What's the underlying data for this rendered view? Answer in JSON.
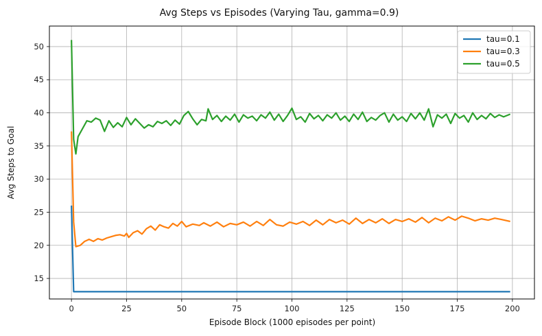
{
  "chart_data": {
    "type": "line",
    "title": "Avg Steps vs Episodes (Varying Tau, gamma=0.9)",
    "xlabel": "Episode Block (1000 episodes per point)",
    "ylabel": "Avg Steps to Goal",
    "xlim": [
      -10,
      210
    ],
    "ylim": [
      11.9,
      53.1
    ],
    "xticks": [
      0,
      25,
      50,
      75,
      100,
      125,
      150,
      175,
      200
    ],
    "yticks": [
      15,
      20,
      25,
      30,
      35,
      40,
      45,
      50
    ],
    "grid": true,
    "legend_position": "top-right",
    "series": [
      {
        "name": "tau=0.1",
        "color": "#1f77b4",
        "points": [
          [
            0,
            26.0
          ],
          [
            1,
            13.0
          ],
          [
            199,
            13.0
          ]
        ]
      },
      {
        "name": "tau=0.3",
        "color": "#ff7f0e",
        "points": [
          [
            0,
            37.2
          ],
          [
            1,
            23.5
          ],
          [
            2,
            19.8
          ],
          [
            4,
            20.0
          ],
          [
            6,
            20.6
          ],
          [
            8,
            20.9
          ],
          [
            10,
            20.6
          ],
          [
            12,
            21.0
          ],
          [
            14,
            20.8
          ],
          [
            16,
            21.1
          ],
          [
            18,
            21.3
          ],
          [
            20,
            21.5
          ],
          [
            22,
            21.6
          ],
          [
            24,
            21.4
          ],
          [
            25,
            21.8
          ],
          [
            26,
            21.2
          ],
          [
            28,
            21.9
          ],
          [
            30,
            22.2
          ],
          [
            32,
            21.7
          ],
          [
            34,
            22.5
          ],
          [
            36,
            22.9
          ],
          [
            38,
            22.3
          ],
          [
            40,
            23.1
          ],
          [
            42,
            22.8
          ],
          [
            44,
            22.6
          ],
          [
            46,
            23.3
          ],
          [
            48,
            22.9
          ],
          [
            50,
            23.6
          ],
          [
            52,
            22.8
          ],
          [
            55,
            23.2
          ],
          [
            58,
            23.0
          ],
          [
            60,
            23.4
          ],
          [
            63,
            22.9
          ],
          [
            66,
            23.5
          ],
          [
            69,
            22.8
          ],
          [
            72,
            23.3
          ],
          [
            75,
            23.1
          ],
          [
            78,
            23.5
          ],
          [
            81,
            22.9
          ],
          [
            84,
            23.6
          ],
          [
            87,
            23.0
          ],
          [
            90,
            23.9
          ],
          [
            93,
            23.1
          ],
          [
            96,
            22.9
          ],
          [
            99,
            23.5
          ],
          [
            102,
            23.2
          ],
          [
            105,
            23.6
          ],
          [
            108,
            23.0
          ],
          [
            111,
            23.8
          ],
          [
            114,
            23.1
          ],
          [
            117,
            23.9
          ],
          [
            120,
            23.4
          ],
          [
            123,
            23.8
          ],
          [
            126,
            23.2
          ],
          [
            129,
            24.1
          ],
          [
            132,
            23.3
          ],
          [
            135,
            23.9
          ],
          [
            138,
            23.4
          ],
          [
            141,
            24.0
          ],
          [
            144,
            23.3
          ],
          [
            147,
            23.9
          ],
          [
            150,
            23.6
          ],
          [
            153,
            24.0
          ],
          [
            156,
            23.5
          ],
          [
            159,
            24.2
          ],
          [
            162,
            23.4
          ],
          [
            165,
            24.1
          ],
          [
            168,
            23.7
          ],
          [
            171,
            24.3
          ],
          [
            174,
            23.8
          ],
          [
            177,
            24.4
          ],
          [
            180,
            24.1
          ],
          [
            183,
            23.7
          ],
          [
            186,
            24.0
          ],
          [
            189,
            23.8
          ],
          [
            192,
            24.1
          ],
          [
            195,
            23.9
          ],
          [
            199,
            23.6
          ]
        ]
      },
      {
        "name": "tau=0.5",
        "color": "#2ca02c",
        "points": [
          [
            0,
            51.0
          ],
          [
            1,
            36.0
          ],
          [
            2,
            33.8
          ],
          [
            3,
            36.4
          ],
          [
            5,
            37.6
          ],
          [
            7,
            38.8
          ],
          [
            9,
            38.6
          ],
          [
            11,
            39.2
          ],
          [
            13,
            38.9
          ],
          [
            15,
            37.2
          ],
          [
            17,
            38.8
          ],
          [
            19,
            37.8
          ],
          [
            21,
            38.5
          ],
          [
            23,
            37.9
          ],
          [
            25,
            39.3
          ],
          [
            27,
            38.2
          ],
          [
            29,
            39.1
          ],
          [
            31,
            38.4
          ],
          [
            33,
            37.7
          ],
          [
            35,
            38.2
          ],
          [
            37,
            37.9
          ],
          [
            39,
            38.7
          ],
          [
            41,
            38.4
          ],
          [
            43,
            38.8
          ],
          [
            45,
            38.1
          ],
          [
            47,
            38.9
          ],
          [
            49,
            38.3
          ],
          [
            51,
            39.6
          ],
          [
            53,
            40.2
          ],
          [
            55,
            39.1
          ],
          [
            57,
            38.2
          ],
          [
            59,
            39.0
          ],
          [
            61,
            38.8
          ],
          [
            62,
            40.6
          ],
          [
            64,
            39.0
          ],
          [
            66,
            39.6
          ],
          [
            68,
            38.7
          ],
          [
            70,
            39.5
          ],
          [
            72,
            38.9
          ],
          [
            74,
            39.8
          ],
          [
            76,
            38.6
          ],
          [
            78,
            39.7
          ],
          [
            80,
            39.2
          ],
          [
            82,
            39.5
          ],
          [
            84,
            38.8
          ],
          [
            86,
            39.7
          ],
          [
            88,
            39.2
          ],
          [
            90,
            40.1
          ],
          [
            92,
            38.9
          ],
          [
            94,
            39.8
          ],
          [
            96,
            38.7
          ],
          [
            98,
            39.6
          ],
          [
            100,
            40.7
          ],
          [
            102,
            39.0
          ],
          [
            104,
            39.4
          ],
          [
            106,
            38.6
          ],
          [
            108,
            39.9
          ],
          [
            110,
            39.1
          ],
          [
            112,
            39.6
          ],
          [
            114,
            38.8
          ],
          [
            116,
            39.7
          ],
          [
            118,
            39.2
          ],
          [
            120,
            40.0
          ],
          [
            122,
            38.9
          ],
          [
            124,
            39.5
          ],
          [
            126,
            38.7
          ],
          [
            128,
            39.8
          ],
          [
            130,
            39.0
          ],
          [
            132,
            40.1
          ],
          [
            134,
            38.7
          ],
          [
            136,
            39.3
          ],
          [
            138,
            38.9
          ],
          [
            140,
            39.6
          ],
          [
            142,
            40.0
          ],
          [
            144,
            38.6
          ],
          [
            146,
            39.8
          ],
          [
            148,
            38.9
          ],
          [
            150,
            39.4
          ],
          [
            152,
            38.7
          ],
          [
            154,
            39.9
          ],
          [
            156,
            39.1
          ],
          [
            158,
            40.0
          ],
          [
            160,
            38.9
          ],
          [
            162,
            40.6
          ],
          [
            164,
            37.9
          ],
          [
            166,
            39.7
          ],
          [
            168,
            39.2
          ],
          [
            170,
            39.8
          ],
          [
            172,
            38.4
          ],
          [
            174,
            39.9
          ],
          [
            176,
            39.2
          ],
          [
            178,
            39.6
          ],
          [
            180,
            38.6
          ],
          [
            182,
            40.0
          ],
          [
            184,
            39.0
          ],
          [
            186,
            39.6
          ],
          [
            188,
            39.1
          ],
          [
            190,
            39.9
          ],
          [
            192,
            39.3
          ],
          [
            194,
            39.7
          ],
          [
            196,
            39.4
          ],
          [
            199,
            39.8
          ]
        ]
      }
    ]
  }
}
